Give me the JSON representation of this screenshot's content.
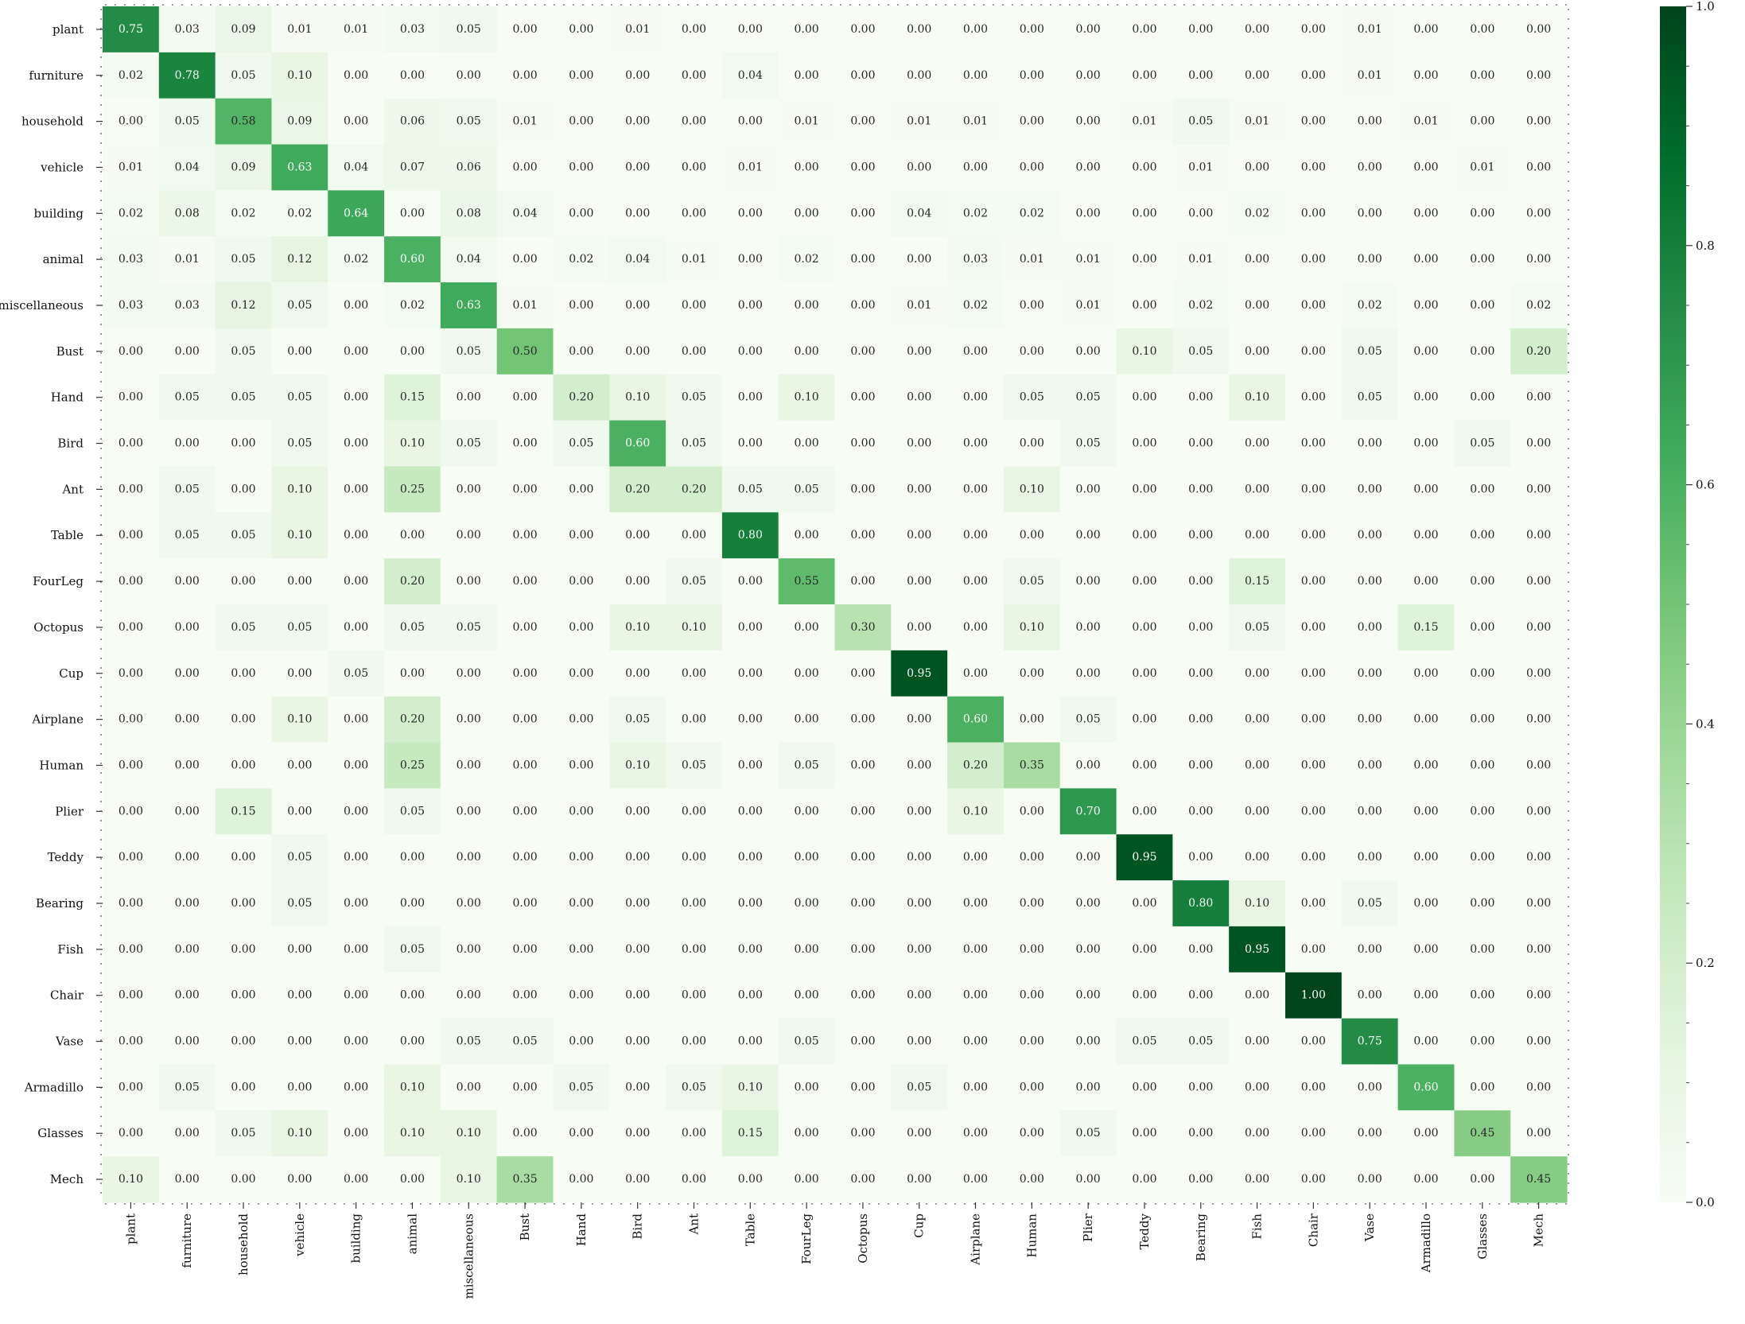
{
  "chart_data": {
    "type": "heatmap",
    "title": "",
    "xlabel": "",
    "ylabel": "",
    "rows": [
      "plant",
      "furniture",
      "household",
      "vehicle",
      "building",
      "animal",
      "miscellaneous",
      "Bust",
      "Hand",
      "Bird",
      "Ant",
      "Table",
      "FourLeg",
      "Octopus",
      "Cup",
      "Airplane",
      "Human",
      "Plier",
      "Teddy",
      "Bearing",
      "Fish",
      "Chair",
      "Vase",
      "Armadillo",
      "Glasses",
      "Mech"
    ],
    "columns": [
      "plant",
      "furniture",
      "household",
      "vehicle",
      "building",
      "animal",
      "miscellaneous",
      "Bust",
      "Hand",
      "Bird",
      "Ant",
      "Table",
      "FourLeg",
      "Octopus",
      "Cup",
      "Airplane",
      "Human",
      "Plier",
      "Teddy",
      "Bearing",
      "Fish",
      "Chair",
      "Vase",
      "Armadillo",
      "Glasses",
      "Mech"
    ],
    "values": [
      [
        0.75,
        0.03,
        0.09,
        0.01,
        0.01,
        0.03,
        0.05,
        0.0,
        0.0,
        0.01,
        0.0,
        0.0,
        0.0,
        0.0,
        0.0,
        0.0,
        0.0,
        0.0,
        0.0,
        0.0,
        0.0,
        0.0,
        0.01,
        0.0,
        0.0,
        0.0
      ],
      [
        0.02,
        0.78,
        0.05,
        0.1,
        0.0,
        0.0,
        0.0,
        0.0,
        0.0,
        0.0,
        0.0,
        0.04,
        0.0,
        0.0,
        0.0,
        0.0,
        0.0,
        0.0,
        0.0,
        0.0,
        0.0,
        0.0,
        0.01,
        0.0,
        0.0,
        0.0
      ],
      [
        0.0,
        0.05,
        0.58,
        0.09,
        0.0,
        0.06,
        0.05,
        0.01,
        0.0,
        0.0,
        0.0,
        0.0,
        0.01,
        0.0,
        0.01,
        0.01,
        0.0,
        0.0,
        0.01,
        0.05,
        0.01,
        0.0,
        0.0,
        0.01,
        0.0,
        0.0
      ],
      [
        0.01,
        0.04,
        0.09,
        0.63,
        0.04,
        0.07,
        0.06,
        0.0,
        0.0,
        0.0,
        0.0,
        0.01,
        0.0,
        0.0,
        0.0,
        0.0,
        0.0,
        0.0,
        0.0,
        0.01,
        0.0,
        0.0,
        0.0,
        0.0,
        0.01,
        0.0
      ],
      [
        0.02,
        0.08,
        0.02,
        0.02,
        0.64,
        0.0,
        0.08,
        0.04,
        0.0,
        0.0,
        0.0,
        0.0,
        0.0,
        0.0,
        0.04,
        0.02,
        0.02,
        0.0,
        0.0,
        0.0,
        0.02,
        0.0,
        0.0,
        0.0,
        0.0,
        0.0
      ],
      [
        0.03,
        0.01,
        0.05,
        0.12,
        0.02,
        0.6,
        0.04,
        0.0,
        0.02,
        0.04,
        0.01,
        0.0,
        0.02,
        0.0,
        0.0,
        0.03,
        0.01,
        0.01,
        0.0,
        0.01,
        0.0,
        0.0,
        0.0,
        0.0,
        0.0,
        0.0
      ],
      [
        0.03,
        0.03,
        0.12,
        0.05,
        0.0,
        0.02,
        0.63,
        0.01,
        0.0,
        0.0,
        0.0,
        0.0,
        0.0,
        0.0,
        0.01,
        0.02,
        0.0,
        0.01,
        0.0,
        0.02,
        0.0,
        0.0,
        0.02,
        0.0,
        0.0,
        0.02
      ],
      [
        0.0,
        0.0,
        0.05,
        0.0,
        0.0,
        0.0,
        0.05,
        0.5,
        0.0,
        0.0,
        0.0,
        0.0,
        0.0,
        0.0,
        0.0,
        0.0,
        0.0,
        0.0,
        0.1,
        0.05,
        0.0,
        0.0,
        0.05,
        0.0,
        0.0,
        0.2
      ],
      [
        0.0,
        0.05,
        0.05,
        0.05,
        0.0,
        0.15,
        0.0,
        0.0,
        0.2,
        0.1,
        0.05,
        0.0,
        0.1,
        0.0,
        0.0,
        0.0,
        0.05,
        0.05,
        0.0,
        0.0,
        0.1,
        0.0,
        0.05,
        0.0,
        0.0,
        0.0
      ],
      [
        0.0,
        0.0,
        0.0,
        0.05,
        0.0,
        0.1,
        0.05,
        0.0,
        0.05,
        0.6,
        0.05,
        0.0,
        0.0,
        0.0,
        0.0,
        0.0,
        0.0,
        0.05,
        0.0,
        0.0,
        0.0,
        0.0,
        0.0,
        0.0,
        0.05,
        0.0
      ],
      [
        0.0,
        0.05,
        0.0,
        0.1,
        0.0,
        0.25,
        0.0,
        0.0,
        0.0,
        0.2,
        0.2,
        0.05,
        0.05,
        0.0,
        0.0,
        0.0,
        0.1,
        0.0,
        0.0,
        0.0,
        0.0,
        0.0,
        0.0,
        0.0,
        0.0,
        0.0
      ],
      [
        0.0,
        0.05,
        0.05,
        0.1,
        0.0,
        0.0,
        0.0,
        0.0,
        0.0,
        0.0,
        0.0,
        0.8,
        0.0,
        0.0,
        0.0,
        0.0,
        0.0,
        0.0,
        0.0,
        0.0,
        0.0,
        0.0,
        0.0,
        0.0,
        0.0,
        0.0
      ],
      [
        0.0,
        0.0,
        0.0,
        0.0,
        0.0,
        0.2,
        0.0,
        0.0,
        0.0,
        0.0,
        0.05,
        0.0,
        0.55,
        0.0,
        0.0,
        0.0,
        0.05,
        0.0,
        0.0,
        0.0,
        0.15,
        0.0,
        0.0,
        0.0,
        0.0,
        0.0
      ],
      [
        0.0,
        0.0,
        0.05,
        0.05,
        0.0,
        0.05,
        0.05,
        0.0,
        0.0,
        0.1,
        0.1,
        0.0,
        0.0,
        0.3,
        0.0,
        0.0,
        0.1,
        0.0,
        0.0,
        0.0,
        0.05,
        0.0,
        0.0,
        0.15,
        0.0,
        0.0
      ],
      [
        0.0,
        0.0,
        0.0,
        0.0,
        0.05,
        0.0,
        0.0,
        0.0,
        0.0,
        0.0,
        0.0,
        0.0,
        0.0,
        0.0,
        0.95,
        0.0,
        0.0,
        0.0,
        0.0,
        0.0,
        0.0,
        0.0,
        0.0,
        0.0,
        0.0,
        0.0
      ],
      [
        0.0,
        0.0,
        0.0,
        0.1,
        0.0,
        0.2,
        0.0,
        0.0,
        0.0,
        0.05,
        0.0,
        0.0,
        0.0,
        0.0,
        0.0,
        0.6,
        0.0,
        0.05,
        0.0,
        0.0,
        0.0,
        0.0,
        0.0,
        0.0,
        0.0,
        0.0
      ],
      [
        0.0,
        0.0,
        0.0,
        0.0,
        0.0,
        0.25,
        0.0,
        0.0,
        0.0,
        0.1,
        0.05,
        0.0,
        0.05,
        0.0,
        0.0,
        0.2,
        0.35,
        0.0,
        0.0,
        0.0,
        0.0,
        0.0,
        0.0,
        0.0,
        0.0,
        0.0
      ],
      [
        0.0,
        0.0,
        0.15,
        0.0,
        0.0,
        0.05,
        0.0,
        0.0,
        0.0,
        0.0,
        0.0,
        0.0,
        0.0,
        0.0,
        0.0,
        0.1,
        0.0,
        0.7,
        0.0,
        0.0,
        0.0,
        0.0,
        0.0,
        0.0,
        0.0,
        0.0
      ],
      [
        0.0,
        0.0,
        0.0,
        0.05,
        0.0,
        0.0,
        0.0,
        0.0,
        0.0,
        0.0,
        0.0,
        0.0,
        0.0,
        0.0,
        0.0,
        0.0,
        0.0,
        0.0,
        0.95,
        0.0,
        0.0,
        0.0,
        0.0,
        0.0,
        0.0,
        0.0
      ],
      [
        0.0,
        0.0,
        0.0,
        0.05,
        0.0,
        0.0,
        0.0,
        0.0,
        0.0,
        0.0,
        0.0,
        0.0,
        0.0,
        0.0,
        0.0,
        0.0,
        0.0,
        0.0,
        0.0,
        0.8,
        0.1,
        0.0,
        0.05,
        0.0,
        0.0,
        0.0
      ],
      [
        0.0,
        0.0,
        0.0,
        0.0,
        0.0,
        0.05,
        0.0,
        0.0,
        0.0,
        0.0,
        0.0,
        0.0,
        0.0,
        0.0,
        0.0,
        0.0,
        0.0,
        0.0,
        0.0,
        0.0,
        0.95,
        0.0,
        0.0,
        0.0,
        0.0,
        0.0
      ],
      [
        0.0,
        0.0,
        0.0,
        0.0,
        0.0,
        0.0,
        0.0,
        0.0,
        0.0,
        0.0,
        0.0,
        0.0,
        0.0,
        0.0,
        0.0,
        0.0,
        0.0,
        0.0,
        0.0,
        0.0,
        0.0,
        1.0,
        0.0,
        0.0,
        0.0,
        0.0
      ],
      [
        0.0,
        0.0,
        0.0,
        0.0,
        0.0,
        0.0,
        0.05,
        0.05,
        0.0,
        0.0,
        0.0,
        0.0,
        0.05,
        0.0,
        0.0,
        0.0,
        0.0,
        0.0,
        0.05,
        0.05,
        0.0,
        0.0,
        0.75,
        0.0,
        0.0,
        0.0
      ],
      [
        0.0,
        0.05,
        0.0,
        0.0,
        0.0,
        0.1,
        0.0,
        0.0,
        0.05,
        0.0,
        0.05,
        0.1,
        0.0,
        0.0,
        0.05,
        0.0,
        0.0,
        0.0,
        0.0,
        0.0,
        0.0,
        0.0,
        0.0,
        0.6,
        0.0,
        0.0
      ],
      [
        0.0,
        0.0,
        0.05,
        0.1,
        0.0,
        0.1,
        0.1,
        0.0,
        0.0,
        0.0,
        0.0,
        0.15,
        0.0,
        0.0,
        0.0,
        0.0,
        0.0,
        0.05,
        0.0,
        0.0,
        0.0,
        0.0,
        0.0,
        0.0,
        0.45,
        0.0
      ],
      [
        0.1,
        0.0,
        0.0,
        0.0,
        0.0,
        0.0,
        0.1,
        0.35,
        0.0,
        0.0,
        0.0,
        0.0,
        0.0,
        0.0,
        0.0,
        0.0,
        0.0,
        0.0,
        0.0,
        0.0,
        0.0,
        0.0,
        0.0,
        0.0,
        0.0,
        0.45
      ]
    ],
    "value_format": "2 decimals",
    "colorscale": {
      "name": "Greens",
      "vmin": 0.0,
      "vmax": 1.0,
      "stops": [
        "#f7fcf5",
        "#e5f5e0",
        "#c7e9c0",
        "#a1d99b",
        "#74c476",
        "#41ab5d",
        "#238b45",
        "#006d2c",
        "#00441b"
      ]
    },
    "colorbar": {
      "ticks": [
        0.0,
        0.2,
        0.4,
        0.6,
        0.8,
        1.0
      ],
      "tick_labels": [
        "0.0",
        "0.2",
        "0.4",
        "0.6",
        "0.8",
        "1.0"
      ]
    },
    "grid": false,
    "legend": "colorbar right"
  }
}
